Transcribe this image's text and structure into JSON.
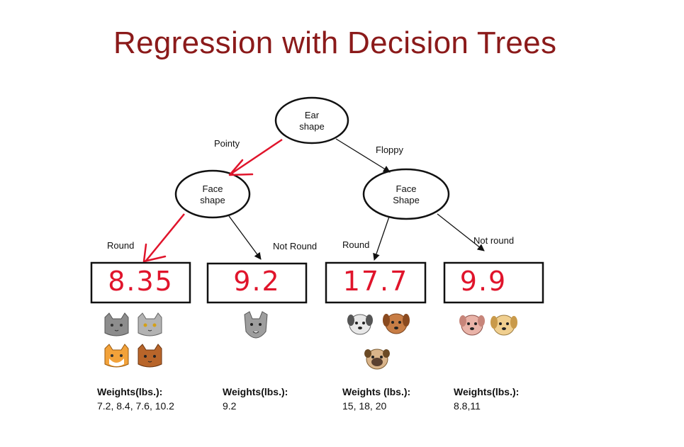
{
  "title": "Regression with Decision Trees",
  "root": {
    "line1": "Ear",
    "line2": "shape"
  },
  "left_node": {
    "line1": "Face",
    "line2": "shape"
  },
  "right_node": {
    "line1": "Face",
    "line2": "Shape"
  },
  "edges": {
    "pointy": "Pointy",
    "floppy": "Floppy",
    "left_round": "Round",
    "left_not_round": "Not Round",
    "right_round": "Round",
    "right_not_round": "Not round"
  },
  "leaves": [
    {
      "value": "8.35",
      "weights_title": "Weights(lbs.):",
      "weights": "7.2, 8.4, 7.6, 10.2",
      "animals": [
        "cat-grey",
        "cat-grey-light",
        "cat-orange",
        "cat-brown"
      ]
    },
    {
      "value": "9.2",
      "weights_title": "Weights(lbs.):",
      "weights": "9.2",
      "animals": [
        "cat-wolf-grey"
      ]
    },
    {
      "value": "17.7",
      "weights_title": "Weights (lbs.):",
      "weights": "15,  18, 20",
      "animals": [
        "dog-white",
        "dog-brown",
        "dog-pug"
      ]
    },
    {
      "value": "9.9",
      "weights_title": "Weights(lbs.):",
      "weights": "8.8,11",
      "animals": [
        "dog-pink",
        "dog-tan"
      ]
    }
  ],
  "colors": {
    "title": "#8b1a1a",
    "highlight": "#e0142b",
    "ink": "#111111"
  }
}
